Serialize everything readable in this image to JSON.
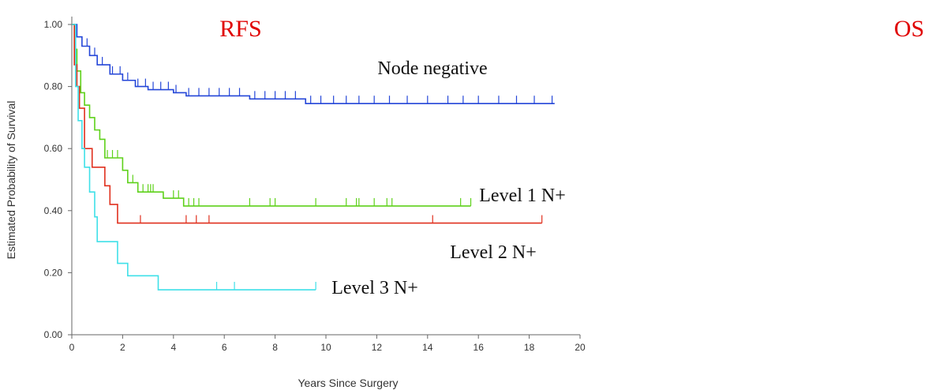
{
  "chart_data": {
    "type": "km",
    "title": "RFS",
    "annotations": [
      "OS"
    ],
    "xlabel": "Years Since Surgery",
    "ylabel": "Estimated Probability of Survival",
    "xlim": [
      0,
      20
    ],
    "xticks": [
      0,
      2,
      4,
      6,
      8,
      10,
      12,
      14,
      16,
      18,
      20
    ],
    "ylim": [
      0,
      1
    ],
    "yticks": [
      {
        "value": 0,
        "label": "0.00"
      },
      {
        "value": 0.2,
        "label": "0.20"
      },
      {
        "value": 0.4,
        "label": "0.40"
      },
      {
        "value": 0.6,
        "label": "0.60"
      },
      {
        "value": 0.8,
        "label": "0.80"
      },
      {
        "value": 1,
        "label": "1.00"
      }
    ],
    "series": [
      {
        "name": "Node negative",
        "color": "#2446d8",
        "x": [
          0,
          0.2,
          0.4,
          0.7,
          1,
          1.5,
          2,
          2.5,
          3,
          4,
          4.5,
          7,
          9.2,
          19
        ],
        "values": [
          1,
          0.96,
          0.93,
          0.9,
          0.87,
          0.84,
          0.82,
          0.8,
          0.79,
          0.78,
          0.77,
          0.76,
          0.745,
          0.745
        ],
        "censored": [
          0.6,
          0.9,
          1.2,
          1.6,
          1.9,
          2.2,
          2.6,
          2.9,
          3.2,
          3.5,
          3.8,
          4.1,
          4.6,
          5.0,
          5.4,
          5.8,
          6.2,
          6.6,
          7.2,
          7.6,
          8.0,
          8.4,
          8.8,
          9.4,
          9.8,
          10.3,
          10.8,
          11.3,
          11.9,
          12.5,
          13.2,
          14.0,
          14.8,
          15.4,
          16.0,
          16.8,
          17.5,
          18.2,
          18.9
        ]
      },
      {
        "name": "Level 1 N+",
        "color": "#5ed11a",
        "x": [
          0,
          0.1,
          0.2,
          0.35,
          0.5,
          0.7,
          0.9,
          1.1,
          1.3,
          2.0,
          2.2,
          2.6,
          3.6,
          4.4,
          15.7
        ],
        "values": [
          1,
          0.92,
          0.85,
          0.78,
          0.74,
          0.7,
          0.66,
          0.63,
          0.57,
          0.53,
          0.49,
          0.46,
          0.44,
          0.415,
          0.415
        ],
        "censored": [
          1.4,
          1.6,
          1.8,
          2.4,
          2.8,
          3.0,
          3.1,
          3.2,
          4.0,
          4.2,
          4.6,
          4.8,
          5.0,
          7.0,
          7.8,
          8.0,
          9.6,
          10.8,
          11.2,
          11.3,
          11.9,
          12.4,
          12.6,
          15.3,
          15.7
        ]
      },
      {
        "name": "Level 2 N+",
        "color": "#e0301e",
        "x": [
          0,
          0.1,
          0.2,
          0.3,
          0.5,
          0.8,
          1.3,
          1.5,
          1.8,
          18.5
        ],
        "values": [
          1,
          0.87,
          0.8,
          0.73,
          0.6,
          0.54,
          0.48,
          0.42,
          0.36,
          0.36
        ],
        "censored": [
          2.7,
          4.5,
          4.9,
          5.4,
          14.2,
          18.5
        ]
      },
      {
        "name": "Level 3 N+",
        "color": "#3fe0e8",
        "x": [
          0,
          0.15,
          0.25,
          0.4,
          0.5,
          0.7,
          0.9,
          1.0,
          1.8,
          2.2,
          3.4,
          9.6
        ],
        "values": [
          1,
          0.8,
          0.69,
          0.6,
          0.54,
          0.46,
          0.38,
          0.3,
          0.23,
          0.19,
          0.145,
          0.145
        ],
        "censored": [
          5.7,
          6.4,
          9.6
        ]
      }
    ]
  }
}
